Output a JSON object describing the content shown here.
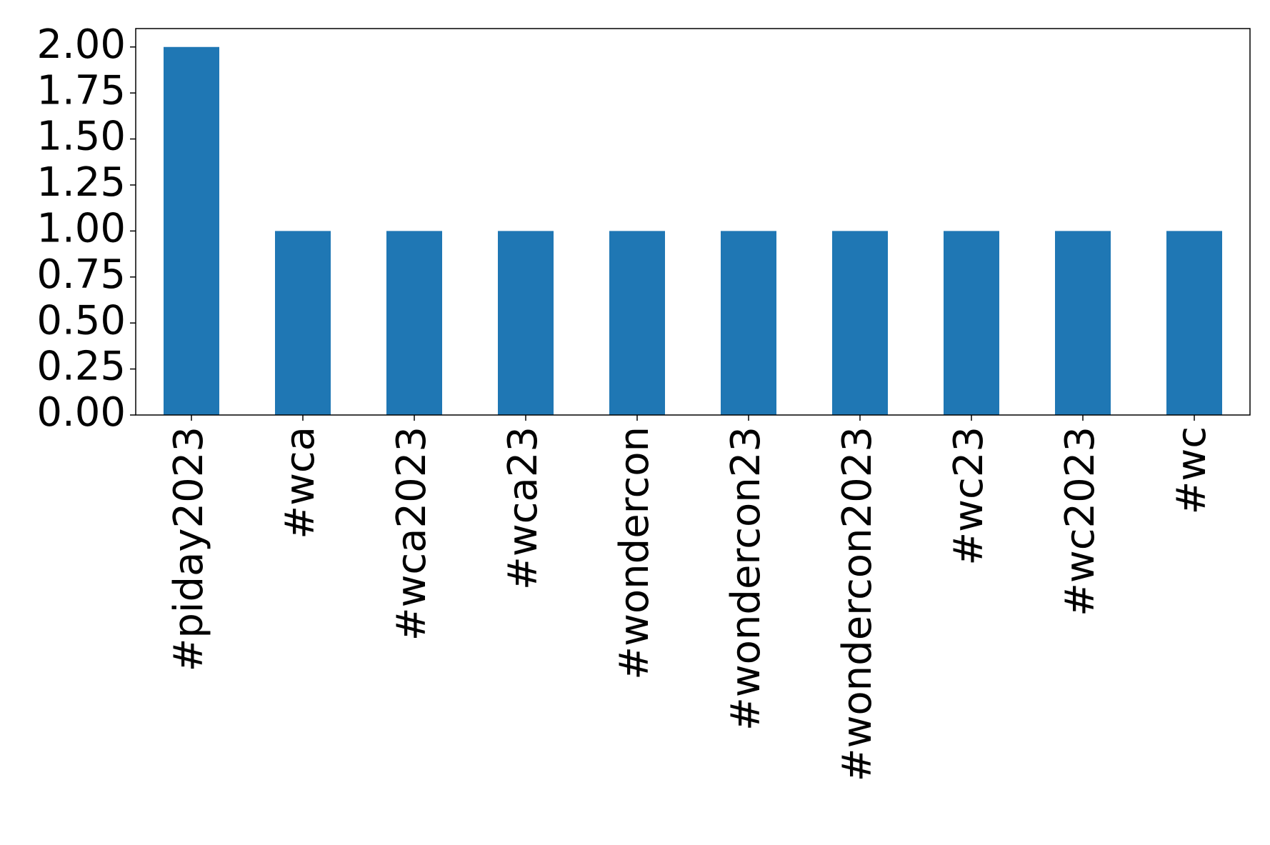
{
  "chart_data": {
    "type": "bar",
    "categories": [
      "#piday2023",
      "#wca",
      "#wca2023",
      "#wca23",
      "#wondercon",
      "#wondercon23",
      "#wondercon2023",
      "#wc23",
      "#wc2023",
      "#wc"
    ],
    "values": [
      2,
      1,
      1,
      1,
      1,
      1,
      1,
      1,
      1,
      1
    ],
    "title": "",
    "xlabel": "",
    "ylabel": "",
    "ylim": [
      0,
      2.1
    ],
    "yticks": [
      "0.00",
      "0.25",
      "0.50",
      "0.75",
      "1.00",
      "1.25",
      "1.50",
      "1.75",
      "2.00"
    ],
    "bar_color": "#1f77b4",
    "grid": false,
    "legend": "none"
  }
}
